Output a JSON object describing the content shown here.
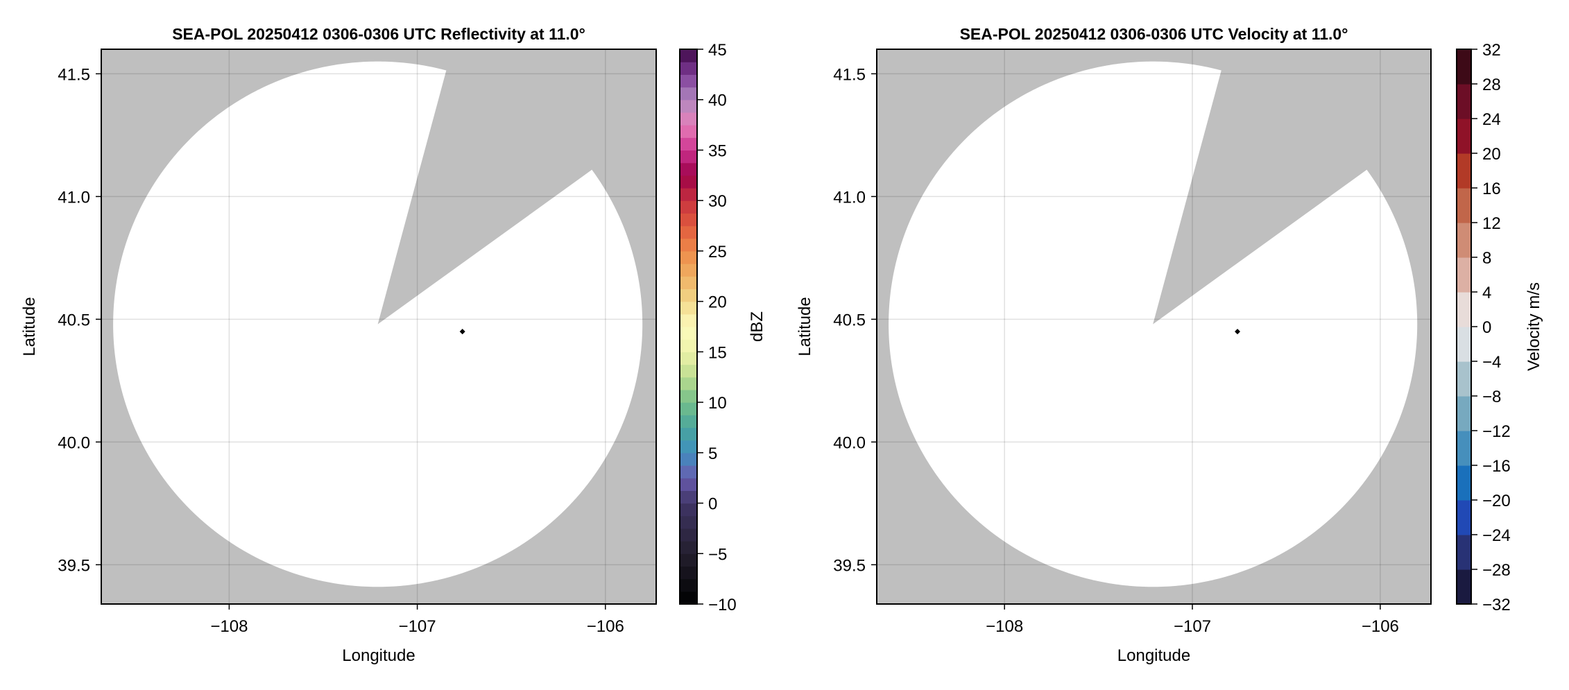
{
  "chart_data": [
    {
      "type": "heatmap",
      "title": "SEA-POL 20250412 0306-0306 UTC Reflectivity at 11.0°",
      "xlabel": "Longitude",
      "ylabel": "Latitude",
      "xlim": [
        -108.68,
        -105.73
      ],
      "ylim": [
        39.34,
        41.6
      ],
      "xticks": [
        -108,
        -107,
        -106
      ],
      "xtick_labels": [
        "−108",
        "−107",
        "−106"
      ],
      "yticks": [
        39.5,
        40.0,
        40.5,
        41.0,
        41.5
      ],
      "ytick_labels": [
        "39.5",
        "40.0",
        "40.5",
        "41.0",
        "41.5"
      ],
      "grid": true,
      "background_color": "#bfbfbf",
      "scan_area_color": "#ffffff",
      "radar": {
        "lon": -107.21,
        "lat": 40.48,
        "range_km": 119,
        "blanked_azimuth_deg": [
          15,
          54
        ]
      },
      "marker": {
        "lon": -106.76,
        "lat": 40.45,
        "color": "#000000"
      },
      "colorbar": {
        "label": "dBZ",
        "range": [
          -10,
          45
        ],
        "bins": 44,
        "ticks": [
          -10,
          -5,
          0,
          5,
          10,
          15,
          20,
          25,
          30,
          35,
          40,
          45
        ],
        "tick_labels": [
          "−10",
          "−5",
          "0",
          "5",
          "10",
          "15",
          "20",
          "25",
          "30",
          "35",
          "40",
          "45"
        ],
        "anchors": [
          [
            -10,
            "#000000"
          ],
          [
            -5,
            "#231f2e"
          ],
          [
            0,
            "#3f3566"
          ],
          [
            2.5,
            "#6a5caf"
          ],
          [
            5,
            "#3f8fc0"
          ],
          [
            7.5,
            "#4aa69c"
          ],
          [
            10,
            "#74bf8a"
          ],
          [
            12.5,
            "#bcdc8f"
          ],
          [
            15,
            "#eef3aa"
          ],
          [
            17.5,
            "#fdfbbd"
          ],
          [
            20,
            "#f2d88a"
          ],
          [
            22.5,
            "#efb063"
          ],
          [
            25,
            "#ee8a4a"
          ],
          [
            27.5,
            "#e05a3e"
          ],
          [
            30,
            "#c8333f"
          ],
          [
            32.5,
            "#9c0048"
          ],
          [
            35,
            "#cc3390"
          ],
          [
            37.5,
            "#e77fb9"
          ],
          [
            40,
            "#b089c0"
          ],
          [
            42.5,
            "#7f3c98"
          ],
          [
            45,
            "#3d0846"
          ]
        ]
      }
    },
    {
      "type": "heatmap",
      "title": "SEA-POL 20250412 0306-0306 UTC Velocity at 11.0°",
      "xlabel": "Longitude",
      "ylabel": "Latitude",
      "xlim": [
        -108.68,
        -105.73
      ],
      "ylim": [
        39.34,
        41.6
      ],
      "xticks": [
        -108,
        -107,
        -106
      ],
      "xtick_labels": [
        "−108",
        "−107",
        "−106"
      ],
      "yticks": [
        39.5,
        40.0,
        40.5,
        41.0,
        41.5
      ],
      "ytick_labels": [
        "39.5",
        "40.0",
        "40.5",
        "41.0",
        "41.5"
      ],
      "grid": true,
      "background_color": "#bfbfbf",
      "scan_area_color": "#ffffff",
      "radar": {
        "lon": -107.21,
        "lat": 40.48,
        "range_km": 119,
        "blanked_azimuth_deg": [
          15,
          54
        ]
      },
      "marker": {
        "lon": -106.76,
        "lat": 40.45,
        "color": "#000000"
      },
      "colorbar": {
        "label": "Velocity m/s",
        "range": [
          -32,
          32
        ],
        "bins": 16,
        "ticks": [
          -32,
          -28,
          -24,
          -20,
          -16,
          -12,
          -8,
          -4,
          0,
          4,
          8,
          12,
          16,
          20,
          24,
          28,
          32
        ],
        "tick_labels": [
          "−32",
          "−28",
          "−24",
          "−20",
          "−16",
          "−12",
          "−8",
          "−4",
          "0",
          "4",
          "8",
          "12",
          "16",
          "20",
          "24",
          "28",
          "32"
        ],
        "bin_colors": [
          "#1a1a40",
          "#283275",
          "#2149b5",
          "#1a70bb",
          "#468fbc",
          "#77a9bf",
          "#a8c2cc",
          "#d9dfe3",
          "#e8dcd9",
          "#dcb0a4",
          "#cf8c75",
          "#c1664a",
          "#b23a27",
          "#8f1228",
          "#6c0e26",
          "#3d0a17"
        ]
      }
    }
  ]
}
